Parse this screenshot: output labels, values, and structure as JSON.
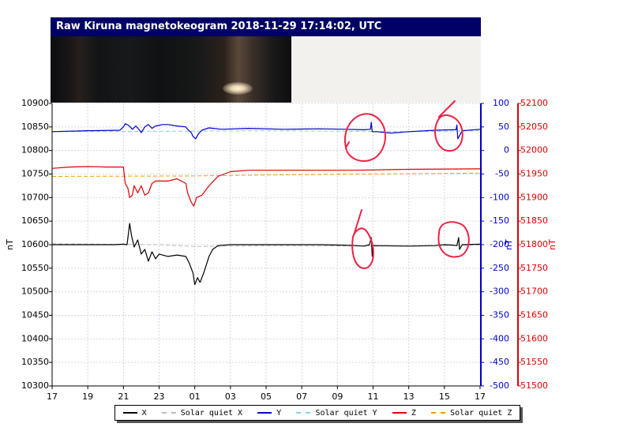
{
  "header": {
    "title": "Raw Kiruna magnetokeogram 2018-11-29 17:14:02, UTC"
  },
  "colors": {
    "x": "#000000",
    "x_quiet": "#bbbbbb",
    "y": "#0000cc",
    "y_quiet": "#87ceeb",
    "z": "#dd0000",
    "z_quiet": "#ff9900",
    "annotation": "#ee2244"
  },
  "chart_data": {
    "type": "line",
    "title": "",
    "x_tick_labels": [
      "17",
      "19",
      "21",
      "23",
      "01",
      "03",
      "05",
      "07",
      "09",
      "11",
      "13",
      "15",
      "17"
    ],
    "left_axis": {
      "label": "nT",
      "range": [
        10300,
        10900
      ],
      "ticks": [
        10300,
        10350,
        10400,
        10450,
        10500,
        10550,
        10600,
        10650,
        10700,
        10750,
        10800,
        10850,
        10900
      ]
    },
    "middle_axis": {
      "label": "nT",
      "range": [
        -500,
        100
      ],
      "ticks": [
        -500,
        -450,
        -400,
        -350,
        -300,
        -250,
        -200,
        -150,
        -100,
        -50,
        0,
        50,
        100
      ]
    },
    "right_axis": {
      "label": "nT",
      "range": [
        51500,
        52100
      ],
      "ticks": [
        51500,
        51550,
        51600,
        51650,
        51700,
        51750,
        51800,
        51850,
        51900,
        51950,
        52000,
        52050,
        52100
      ]
    },
    "grid": true,
    "legend_placement": "bottom",
    "series": [
      {
        "name": "X",
        "axis": "left",
        "style": "solid",
        "points": [
          [
            0,
            10600
          ],
          [
            3.5,
            10600
          ],
          [
            4,
            10601
          ],
          [
            4.2,
            10600
          ],
          [
            4.35,
            10645
          ],
          [
            4.45,
            10620
          ],
          [
            4.6,
            10595
          ],
          [
            4.8,
            10610
          ],
          [
            5,
            10580
          ],
          [
            5.2,
            10590
          ],
          [
            5.4,
            10565
          ],
          [
            5.6,
            10585
          ],
          [
            5.8,
            10570
          ],
          [
            6,
            10580
          ],
          [
            6.5,
            10575
          ],
          [
            7,
            10578
          ],
          [
            7.5,
            10575
          ],
          [
            7.7,
            10560
          ],
          [
            7.9,
            10540
          ],
          [
            8.0,
            10515
          ],
          [
            8.15,
            10530
          ],
          [
            8.3,
            10520
          ],
          [
            8.5,
            10540
          ],
          [
            8.8,
            10575
          ],
          [
            9.0,
            10590
          ],
          [
            9.3,
            10598
          ],
          [
            10,
            10600
          ],
          [
            15,
            10600
          ],
          [
            16.3,
            10599
          ],
          [
            17,
            10598
          ],
          [
            17.5,
            10597
          ],
          [
            17.8,
            10600
          ],
          [
            17.9,
            10615
          ],
          [
            17.95,
            10575
          ],
          [
            18,
            10598
          ],
          [
            20,
            10597
          ],
          [
            21.5,
            10598
          ],
          [
            22,
            10600
          ],
          [
            22.5,
            10599
          ],
          [
            22.7,
            10598
          ],
          [
            22.8,
            10615
          ],
          [
            22.85,
            10590
          ],
          [
            23,
            10600
          ],
          [
            24,
            10601
          ]
        ]
      },
      {
        "name": "Solar quiet X",
        "axis": "left",
        "style": "dashed",
        "points": [
          [
            0,
            10602
          ],
          [
            6,
            10600
          ],
          [
            8,
            10596
          ],
          [
            12,
            10598
          ],
          [
            18,
            10597
          ],
          [
            24,
            10599
          ]
        ]
      },
      {
        "name": "Y",
        "axis": "middle",
        "style": "solid",
        "points": [
          [
            0,
            40
          ],
          [
            2,
            42
          ],
          [
            3.8,
            43
          ],
          [
            4,
            50
          ],
          [
            4.1,
            57
          ],
          [
            4.3,
            53
          ],
          [
            4.5,
            45
          ],
          [
            4.7,
            52
          ],
          [
            4.9,
            43
          ],
          [
            5.0,
            38
          ],
          [
            5.2,
            50
          ],
          [
            5.4,
            55
          ],
          [
            5.6,
            47
          ],
          [
            5.8,
            52
          ],
          [
            6.2,
            55
          ],
          [
            6.5,
            55
          ],
          [
            7,
            52
          ],
          [
            7.5,
            50
          ],
          [
            7.6,
            45
          ],
          [
            7.8,
            38
          ],
          [
            7.9,
            30
          ],
          [
            8.05,
            25
          ],
          [
            8.2,
            35
          ],
          [
            8.4,
            43
          ],
          [
            8.8,
            48
          ],
          [
            9.5,
            45
          ],
          [
            11,
            47
          ],
          [
            13,
            45
          ],
          [
            15,
            46
          ],
          [
            16.5,
            45
          ],
          [
            17.5,
            44
          ],
          [
            17.85,
            45
          ],
          [
            17.9,
            60
          ],
          [
            17.95,
            40
          ],
          [
            18.2,
            40
          ],
          [
            19,
            37
          ],
          [
            20,
            40
          ],
          [
            21.5,
            43
          ],
          [
            22.5,
            44
          ],
          [
            22.65,
            44
          ],
          [
            22.7,
            54
          ],
          [
            22.75,
            25
          ],
          [
            23,
            42
          ],
          [
            24,
            45
          ]
        ]
      },
      {
        "name": "Solar quiet Y",
        "axis": "middle",
        "style": "dashed",
        "points": [
          [
            0,
            40
          ],
          [
            8,
            41
          ],
          [
            12,
            42
          ],
          [
            16,
            41
          ],
          [
            20,
            40
          ],
          [
            24,
            42
          ]
        ]
      },
      {
        "name": "Z",
        "axis": "right",
        "style": "solid",
        "points": [
          [
            0,
            51962
          ],
          [
            1,
            51965
          ],
          [
            2,
            51966
          ],
          [
            3,
            51965
          ],
          [
            4,
            51965
          ],
          [
            4.1,
            51930
          ],
          [
            4.25,
            51920
          ],
          [
            4.35,
            51900
          ],
          [
            4.5,
            51905
          ],
          [
            4.6,
            51925
          ],
          [
            4.8,
            51910
          ],
          [
            5.0,
            51925
          ],
          [
            5.2,
            51905
          ],
          [
            5.4,
            51910
          ],
          [
            5.6,
            51930
          ],
          [
            5.8,
            51935
          ],
          [
            6.5,
            51935
          ],
          [
            7.0,
            51940
          ],
          [
            7.5,
            51930
          ],
          [
            7.6,
            51910
          ],
          [
            7.8,
            51890
          ],
          [
            7.95,
            51882
          ],
          [
            8.1,
            51900
          ],
          [
            8.4,
            51905
          ],
          [
            8.8,
            51925
          ],
          [
            9.3,
            51945
          ],
          [
            10,
            51955
          ],
          [
            11,
            51958
          ],
          [
            14,
            51958
          ],
          [
            17,
            51958
          ],
          [
            20,
            51960
          ],
          [
            24,
            51961
          ]
        ]
      },
      {
        "name": "Solar quiet Z",
        "axis": "right",
        "style": "dashed",
        "points": [
          [
            0,
            51945
          ],
          [
            8,
            51946
          ],
          [
            12,
            51948
          ],
          [
            18,
            51950
          ],
          [
            24,
            51952
          ]
        ]
      }
    ]
  },
  "legend": {
    "items": [
      {
        "label": "X",
        "color": "#000000",
        "style": "solid"
      },
      {
        "label": "Solar quiet X",
        "color": "#bbbbbb",
        "style": "dashed"
      },
      {
        "label": "Y",
        "color": "#0000cc",
        "style": "solid"
      },
      {
        "label": "Solar quiet Y",
        "color": "#87ceeb",
        "style": "dashed"
      },
      {
        "label": "Z",
        "color": "#dd0000",
        "style": "solid"
      },
      {
        "label": "Solar quiet Z",
        "color": "#ff9900",
        "style": "dashed"
      }
    ]
  }
}
